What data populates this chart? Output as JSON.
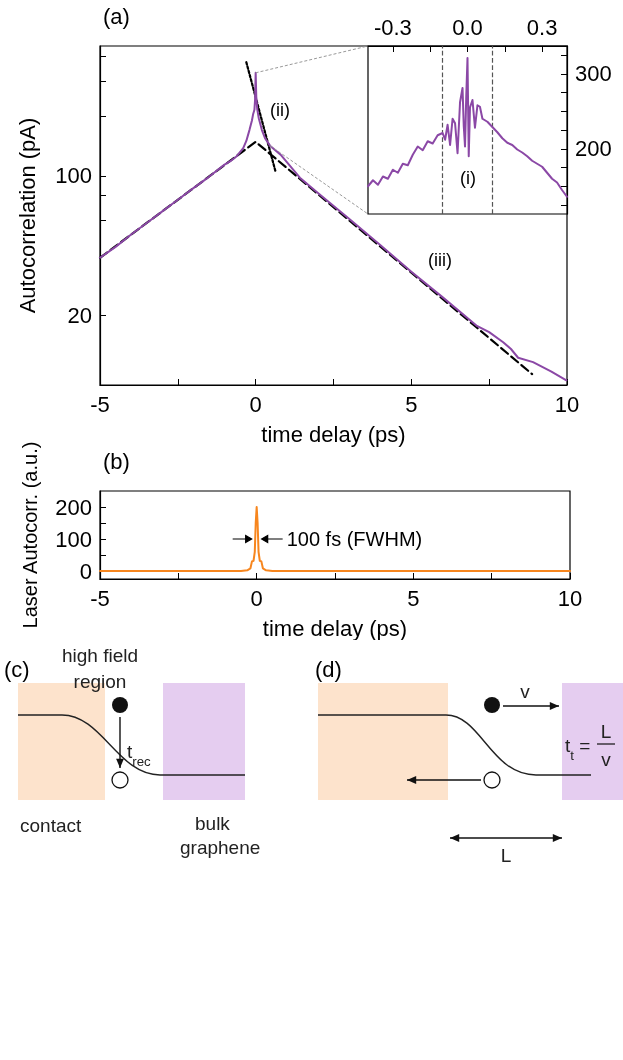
{
  "chart_data": [
    {
      "type": "line",
      "title": "(a)",
      "xlabel": "time delay (ps)",
      "ylabel": "Autocorrelation (pA)",
      "log": "y",
      "marker": "none",
      "line_style": "solid",
      "xlim": [
        -5,
        10
      ],
      "xticks": [
        -5,
        {
          "value": -2.5,
          "label": null
        },
        0,
        {
          "value": 2.5,
          "label": null
        },
        5,
        {
          "value": 7.5,
          "label": null
        },
        10
      ],
      "ylim": [
        8.9,
        450
      ],
      "yticks": [
        20,
        {
          "value": 60,
          "label": null
        },
        {
          "value": 80,
          "label": null
        },
        100,
        {
          "value": 200,
          "label": null
        },
        {
          "value": 300,
          "label": null
        },
        {
          "value": 400,
          "label": null
        }
      ],
      "annotations": [
        "(ii)",
        "(iii)"
      ],
      "series": [
        {
          "color": "#8b48a6",
          "x": [
            -5,
            -4.5,
            -4,
            -3.5,
            -3,
            -2.5,
            -2,
            -1.5,
            -1,
            -0.8,
            -0.6,
            -0.4,
            -0.3,
            -0.2,
            -0.12,
            -0.08,
            -0.04,
            -0.02,
            0,
            0.02,
            0.05,
            0.1,
            0.2,
            0.3,
            0.46,
            0.8,
            1.42,
            2,
            3,
            4,
            5,
            6,
            7.09,
            7.5,
            7.95,
            8.2,
            8.43,
            8.91,
            9.5,
            9.98
          ],
          "values": [
            38.8,
            44,
            50.8,
            58,
            66.4,
            76,
            86.9,
            99,
            114,
            119,
            126,
            138,
            150,
            170,
            190,
            205,
            215,
            240,
            330,
            250,
            217,
            195,
            170,
            155,
            142,
            128,
            98,
            82,
            61,
            45,
            33,
            24.6,
            17.7,
            16.4,
            14.6,
            13.5,
            12.2,
            11.6,
            10.4,
            9.4
          ]
        },
        {
          "color": "#000000",
          "line_style": "dashed",
          "x": [
            -5,
            0,
            8.88
          ],
          "values": [
            38.8,
            148.5,
            10.1
          ]
        },
        {
          "color": "#000000",
          "line_style": "dotted",
          "x": [
            -0.3,
            0.64
          ],
          "values": [
            373,
            105
          ]
        }
      ]
    },
    {
      "type": "line",
      "marker": "none",
      "line_style": "solid",
      "xlim": [
        -0.4,
        0.4
      ],
      "xticks": [
        -0.3,
        {
          "value": -0.15,
          "label": null
        },
        {
          "value": 0,
          "label": "0.0"
        },
        {
          "value": 0.15,
          "label": null
        },
        0.3
      ],
      "ylim": [
        113,
        337
      ],
      "yticks": [
        {
          "value": 125,
          "label": null
        },
        {
          "value": 150,
          "label": null
        },
        {
          "value": 175,
          "label": null
        },
        200,
        {
          "value": 225,
          "label": null
        },
        {
          "value": 250,
          "label": null
        },
        {
          "value": 275,
          "label": null
        },
        300,
        {
          "value": 325,
          "label": null
        }
      ],
      "ref_lines": [
        {
          "axis": "x",
          "value": -0.1,
          "color": "#555555",
          "line_style": "dashed"
        },
        {
          "axis": "x",
          "value": 0.1,
          "color": "#555555",
          "line_style": "dashed"
        }
      ],
      "annotations": [
        "(i)"
      ],
      "series": [
        {
          "color": "#8b48a6",
          "x": [
            -0.4,
            -0.38,
            -0.36,
            -0.34,
            -0.32,
            -0.3,
            -0.28,
            -0.26,
            -0.24,
            -0.22,
            -0.2,
            -0.18,
            -0.16,
            -0.14,
            -0.12,
            -0.1,
            -0.09,
            -0.08,
            -0.07,
            -0.06,
            -0.05,
            -0.04,
            -0.03,
            -0.02,
            -0.015,
            -0.01,
            -0.005,
            0,
            0.005,
            0.01,
            0.02,
            0.03,
            0.04,
            0.05,
            0.06,
            0.08,
            0.1,
            0.12,
            0.14,
            0.16,
            0.18,
            0.2,
            0.22,
            0.24,
            0.26,
            0.28,
            0.3,
            0.32,
            0.34,
            0.36,
            0.38,
            0.4
          ],
          "values": [
            150,
            158,
            152,
            163,
            160,
            172,
            168,
            180,
            178,
            192,
            203,
            198,
            210,
            207,
            218,
            221,
            212,
            232,
            205,
            240,
            234,
            194,
            262,
            281,
            230,
            203,
            270,
            321,
            190,
            255,
            265,
            228,
            258,
            256,
            240,
            236,
            229,
            222,
            214,
            208,
            205,
            199,
            195,
            190,
            184,
            180,
            176,
            168,
            160,
            155,
            145,
            136
          ]
        }
      ]
    },
    {
      "type": "line",
      "title": "(b)",
      "xlabel": "time delay (ps)",
      "ylabel": "Laser Autocorr. (a.u.)",
      "marker": "none",
      "line_style": "solid",
      "xlim": [
        -5,
        10
      ],
      "xticks": [
        -5,
        {
          "value": -2.5,
          "label": null
        },
        0,
        {
          "value": 2.5,
          "label": null
        },
        5,
        {
          "value": 7.5,
          "label": null
        },
        10
      ],
      "ylim": [
        -25,
        250
      ],
      "yticks": [
        0,
        {
          "value": 50,
          "label": null
        },
        100,
        {
          "value": 150,
          "label": null
        },
        200
      ],
      "annotations": [
        {
          "text": "100 fs (FWHM)",
          "x": 0,
          "y": 100
        }
      ],
      "series": [
        {
          "color": "#f7861e",
          "x": [
            -5,
            -0.5,
            -0.3,
            -0.2,
            -0.15,
            -0.1,
            -0.06,
            -0.03,
            0,
            0.03,
            0.06,
            0.1,
            0.15,
            0.2,
            0.3,
            0.5,
            10
          ],
          "values": [
            0,
            0,
            2,
            8,
            30,
            32,
            60,
            150,
            200,
            150,
            60,
            32,
            30,
            8,
            2,
            0,
            0
          ]
        }
      ]
    },
    {
      "type": "other",
      "title": "(c)",
      "annotations": [
        "high field",
        "region",
        "t$_{rec}$",
        "contact",
        "bulk",
        "graphene"
      ]
    },
    {
      "type": "other",
      "title": "(d)",
      "annotations": [
        "v",
        "t$_{t}$ =",
        "L",
        "v",
        "L"
      ]
    }
  ]
}
